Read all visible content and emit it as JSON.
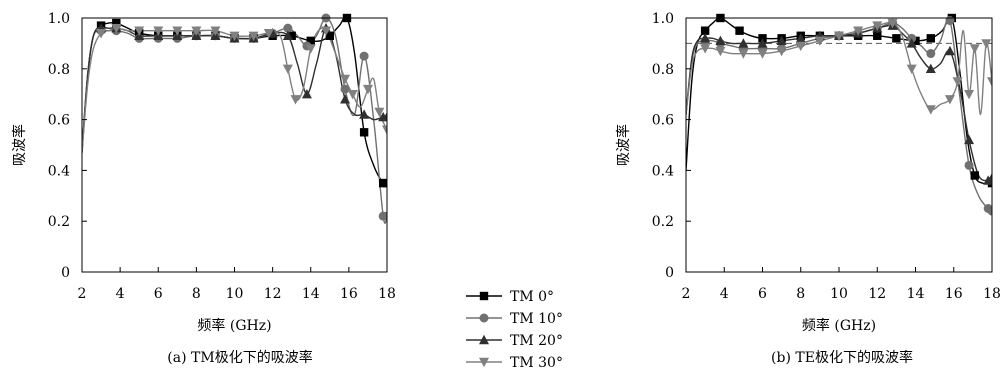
{
  "chart_data": [
    {
      "type": "line",
      "caption": "(a) TM极化下的吸波率",
      "xlabel": "频率 (GHz)",
      "ylabel": "吸波率",
      "xlim": [
        2,
        18
      ],
      "ylim": [
        0,
        1.0
      ],
      "x_ticks": [
        "2",
        "4",
        "6",
        "8",
        "10",
        "12",
        "14",
        "16",
        "18"
      ],
      "y_ticks": [
        "0",
        "0.2",
        "0.4",
        "0.6",
        "0.8",
        "1.0"
      ],
      "series": [
        {
          "name": "TM 0°",
          "color": "#000000",
          "marker": "square",
          "x": [
            2,
            2.3,
            2.6,
            3,
            3.4,
            3.8,
            4.4,
            5,
            6,
            7,
            8,
            9,
            10,
            11,
            12,
            13,
            13.5,
            14,
            14.5,
            15,
            15.5,
            15.9,
            16.3,
            16.8,
            17.3,
            17.8,
            18
          ],
          "y": [
            0.48,
            0.78,
            0.93,
            0.97,
            0.98,
            0.98,
            0.96,
            0.94,
            0.93,
            0.93,
            0.93,
            0.93,
            0.92,
            0.92,
            0.93,
            0.93,
            0.92,
            0.91,
            0.91,
            0.93,
            0.97,
            1.0,
            0.86,
            0.55,
            0.42,
            0.35,
            0.35
          ]
        },
        {
          "name": "TM 10°",
          "color": "#707070",
          "marker": "circle",
          "x": [
            2,
            2.3,
            2.6,
            3,
            3.4,
            3.8,
            4.4,
            5,
            6,
            7,
            8,
            9,
            10,
            11,
            12,
            12.8,
            13.3,
            13.8,
            14.3,
            14.8,
            15.3,
            15.8,
            16.3,
            16.8,
            17.3,
            17.8,
            18
          ],
          "y": [
            0.47,
            0.78,
            0.93,
            0.95,
            0.95,
            0.95,
            0.94,
            0.92,
            0.92,
            0.92,
            0.93,
            0.93,
            0.92,
            0.92,
            0.94,
            0.96,
            0.93,
            0.89,
            0.93,
            1.0,
            0.93,
            0.72,
            0.62,
            0.85,
            0.6,
            0.22,
            0.22
          ]
        },
        {
          "name": "TM 20°",
          "color": "#303030",
          "marker": "triangle-up",
          "x": [
            2,
            2.3,
            2.6,
            3,
            3.4,
            3.8,
            4.4,
            5,
            6,
            7,
            8,
            9,
            10,
            11,
            12,
            12.8,
            13.3,
            13.8,
            14.3,
            14.8,
            15.3,
            15.8,
            16.3,
            16.8,
            17.3,
            17.8,
            18
          ],
          "y": [
            0.47,
            0.77,
            0.93,
            0.96,
            0.96,
            0.96,
            0.95,
            0.93,
            0.93,
            0.93,
            0.93,
            0.93,
            0.92,
            0.92,
            0.94,
            0.93,
            0.82,
            0.7,
            0.82,
            0.96,
            0.86,
            0.68,
            0.62,
            0.62,
            0.6,
            0.61,
            0.61
          ]
        },
        {
          "name": "TM 30°",
          "color": "#808080",
          "marker": "triangle-down",
          "x": [
            2,
            2.3,
            2.6,
            3,
            3.4,
            3.8,
            4.4,
            5,
            6,
            7,
            8,
            9,
            10,
            11,
            11.8,
            12.4,
            12.8,
            13.2,
            13.6,
            14,
            14.4,
            14.8,
            15.3,
            15.8,
            16.2,
            16.6,
            17,
            17.3,
            17.6,
            18
          ],
          "y": [
            0.47,
            0.74,
            0.88,
            0.94,
            0.95,
            0.96,
            0.95,
            0.95,
            0.95,
            0.95,
            0.95,
            0.95,
            0.93,
            0.93,
            0.94,
            0.93,
            0.8,
            0.68,
            0.72,
            0.88,
            0.95,
            0.95,
            0.86,
            0.76,
            0.7,
            0.65,
            0.72,
            0.76,
            0.63,
            0.56
          ]
        }
      ]
    },
    {
      "type": "line",
      "caption": "(b) TE极化下的吸波率",
      "xlabel": "频率 (GHz)",
      "ylabel": "吸波率",
      "xlim": [
        2,
        18
      ],
      "ylim": [
        0,
        1.0
      ],
      "x_ticks": [
        "2",
        "4",
        "6",
        "8",
        "10",
        "12",
        "14",
        "16",
        "18"
      ],
      "y_ticks": [
        "0",
        "0.2",
        "0.4",
        "0.6",
        "0.8",
        "1.0"
      ],
      "reference_line": 0.9,
      "series": [
        {
          "name": "TM 0°",
          "color": "#000000",
          "marker": "square",
          "x": [
            2,
            2.3,
            2.6,
            3,
            3.4,
            3.8,
            4.4,
            4.8,
            5.4,
            6,
            7,
            8,
            9,
            10,
            11,
            12,
            13,
            14,
            14.8,
            15.4,
            15.9,
            16.3,
            16.7,
            17.1,
            17.5,
            18
          ],
          "y": [
            0.4,
            0.75,
            0.9,
            0.95,
            0.98,
            1.0,
            0.97,
            0.95,
            0.93,
            0.92,
            0.92,
            0.93,
            0.93,
            0.93,
            0.93,
            0.93,
            0.92,
            0.91,
            0.92,
            0.95,
            1.0,
            0.8,
            0.53,
            0.38,
            0.35,
            0.35
          ]
        },
        {
          "name": "TM 10°",
          "color": "#707070",
          "marker": "circle",
          "x": [
            2,
            2.3,
            2.6,
            3,
            3.4,
            3.8,
            4.4,
            5,
            6,
            7,
            8,
            9,
            10,
            11,
            12,
            12.8,
            13.3,
            13.8,
            14.3,
            14.8,
            15.3,
            15.8,
            16.3,
            16.8,
            17.3,
            17.8,
            18
          ],
          "y": [
            0.62,
            0.83,
            0.9,
            0.91,
            0.91,
            0.9,
            0.89,
            0.88,
            0.88,
            0.88,
            0.9,
            0.92,
            0.93,
            0.94,
            0.96,
            0.98,
            0.96,
            0.92,
            0.89,
            0.86,
            0.91,
            0.99,
            0.7,
            0.42,
            0.3,
            0.25,
            0.24
          ]
        },
        {
          "name": "TM 20°",
          "color": "#303030",
          "marker": "triangle-up",
          "x": [
            2,
            2.3,
            2.6,
            3,
            3.4,
            3.8,
            4.4,
            5,
            6,
            7,
            8,
            9,
            10,
            11,
            12,
            12.8,
            13.3,
            13.8,
            14.3,
            14.8,
            15.3,
            15.8,
            16.3,
            16.8,
            17.3,
            17.8,
            18
          ],
          "y": [
            0.62,
            0.84,
            0.91,
            0.92,
            0.92,
            0.91,
            0.9,
            0.9,
            0.9,
            0.91,
            0.92,
            0.93,
            0.93,
            0.94,
            0.96,
            0.97,
            0.94,
            0.9,
            0.84,
            0.8,
            0.82,
            0.87,
            0.73,
            0.52,
            0.38,
            0.36,
            0.37
          ]
        },
        {
          "name": "TM 30°",
          "color": "#808080",
          "marker": "triangle-down",
          "x": [
            2,
            2.3,
            2.6,
            3,
            3.4,
            3.8,
            4.4,
            5,
            6,
            7,
            8,
            9,
            10,
            11,
            12,
            12.8,
            13.3,
            13.8,
            14.3,
            14.8,
            15.3,
            15.8,
            16.2,
            16.5,
            16.8,
            17.1,
            17.4,
            17.7,
            18
          ],
          "y": [
            0.62,
            0.81,
            0.87,
            0.88,
            0.88,
            0.87,
            0.86,
            0.86,
            0.86,
            0.87,
            0.89,
            0.91,
            0.93,
            0.95,
            0.97,
            0.98,
            0.93,
            0.8,
            0.7,
            0.64,
            0.66,
            0.68,
            0.75,
            0.95,
            0.7,
            0.88,
            0.62,
            0.9,
            0.75
          ]
        }
      ]
    }
  ],
  "legend": {
    "placement": "bottom-center",
    "items": [
      "TM 0°",
      "TM 10°",
      "TM 20°",
      "TM 30°"
    ]
  }
}
